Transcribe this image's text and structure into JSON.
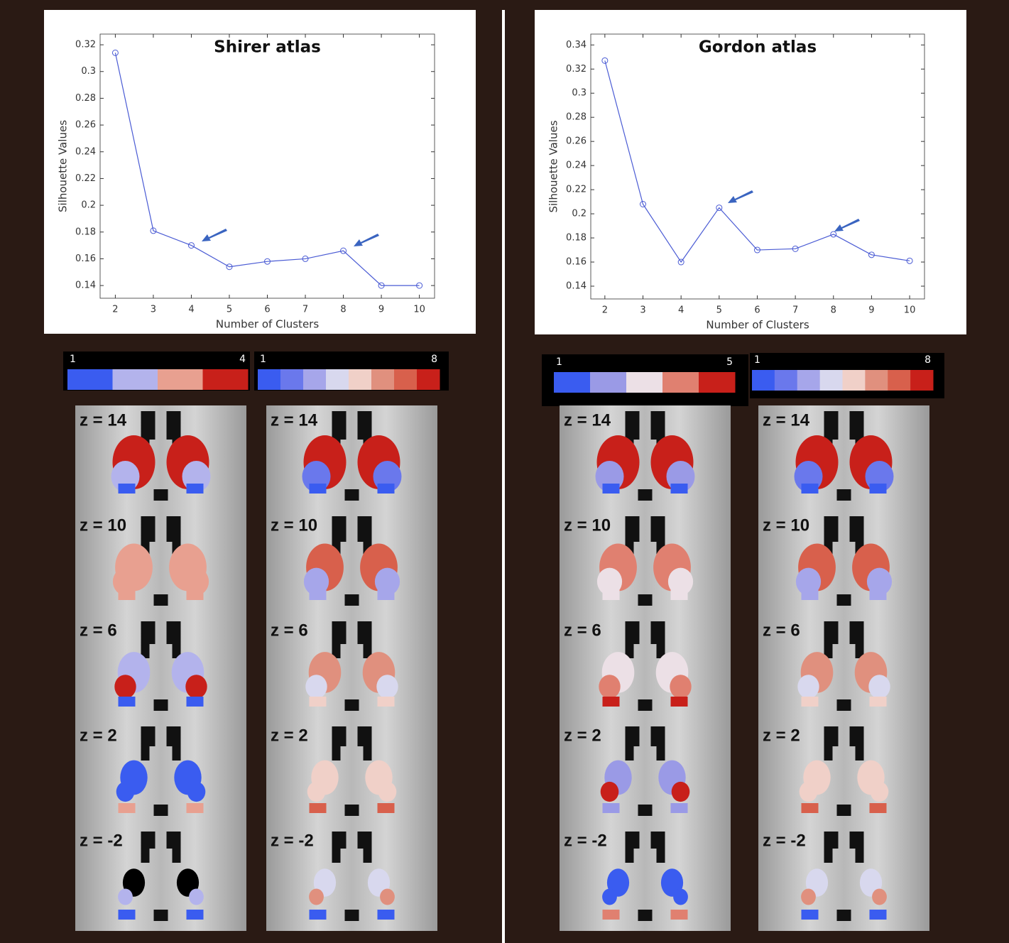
{
  "chart_data": [
    {
      "type": "line",
      "title": "Shirer atlas",
      "x_label": "Number of Clusters",
      "y_label": "Silhouette Values",
      "x": [
        2,
        3,
        4,
        5,
        6,
        7,
        8,
        9,
        10
      ],
      "series": [
        {
          "color": "#4a5bd4",
          "values": [
            0.314,
            0.181,
            0.17,
            0.154,
            0.158,
            0.16,
            0.166,
            0.14,
            0.14
          ]
        }
      ],
      "xlim": [
        1.6,
        10.4
      ],
      "xticks": [
        2,
        3,
        4,
        5,
        6,
        7,
        8,
        9,
        10
      ],
      "ylim": [
        0.1305,
        0.328
      ],
      "yticks": [
        0.14,
        0.16,
        0.18,
        0.2,
        0.22,
        0.24,
        0.26,
        0.28,
        0.3,
        0.32
      ]
    },
    {
      "type": "line",
      "title": "Gordon atlas",
      "x_label": "Number of Clusters",
      "y_label": "Silhouette Values",
      "x": [
        2,
        3,
        4,
        5,
        6,
        7,
        8,
        9,
        10
      ],
      "series": [
        {
          "color": "#4a5bd4",
          "values": [
            0.327,
            0.208,
            0.16,
            0.205,
            0.17,
            0.171,
            0.183,
            0.166,
            0.161
          ]
        }
      ],
      "xlim": [
        1.63,
        10.39
      ],
      "xticks": [
        2,
        3,
        4,
        5,
        6,
        7,
        8,
        9,
        10
      ],
      "ylim": [
        0.1294,
        0.349
      ],
      "yticks": [
        0.14,
        0.16,
        0.18,
        0.2,
        0.22,
        0.24,
        0.26,
        0.28,
        0.3,
        0.32,
        0.34
      ]
    }
  ],
  "colorbars": [
    {
      "ticks": [
        1,
        4
      ],
      "colors": [
        "#3a5cf0",
        "#b3b3ec",
        "#e8a090",
        "#c8201a"
      ]
    },
    {
      "ticks": [
        1,
        8
      ],
      "colors": [
        "#3a5cf0",
        "#6a78ec",
        "#a6a6ea",
        "#d8d8ee",
        "#f0d0c8",
        "#e0907e",
        "#d8604c",
        "#c8201a"
      ]
    },
    {
      "ticks": [
        1,
        5
      ],
      "colors": [
        "#3a5cf0",
        "#9a9ae6",
        "#ece0e6",
        "#e08070",
        "#c8201a"
      ]
    },
    {
      "ticks": [
        1,
        8
      ],
      "colors": [
        "#3a5cf0",
        "#6a78ec",
        "#a6a6ea",
        "#d8d8ee",
        "#f0d0c8",
        "#e0907e",
        "#d8604c",
        "#c8201a"
      ]
    }
  ],
  "slice_labels": [
    [
      "z = 14",
      "z = 10",
      "z = 6",
      "z = 2",
      "z = -2"
    ],
    [
      "z = 14",
      "z = 10",
      "z = 6",
      "z = 2",
      "z = -2"
    ],
    [
      "z = 14",
      "z = 10",
      "z = 6",
      "z = 2",
      "z = -2"
    ],
    [
      "z = 14",
      "z = 10",
      "z = 6",
      "z = 2",
      "z = -2"
    ]
  ]
}
